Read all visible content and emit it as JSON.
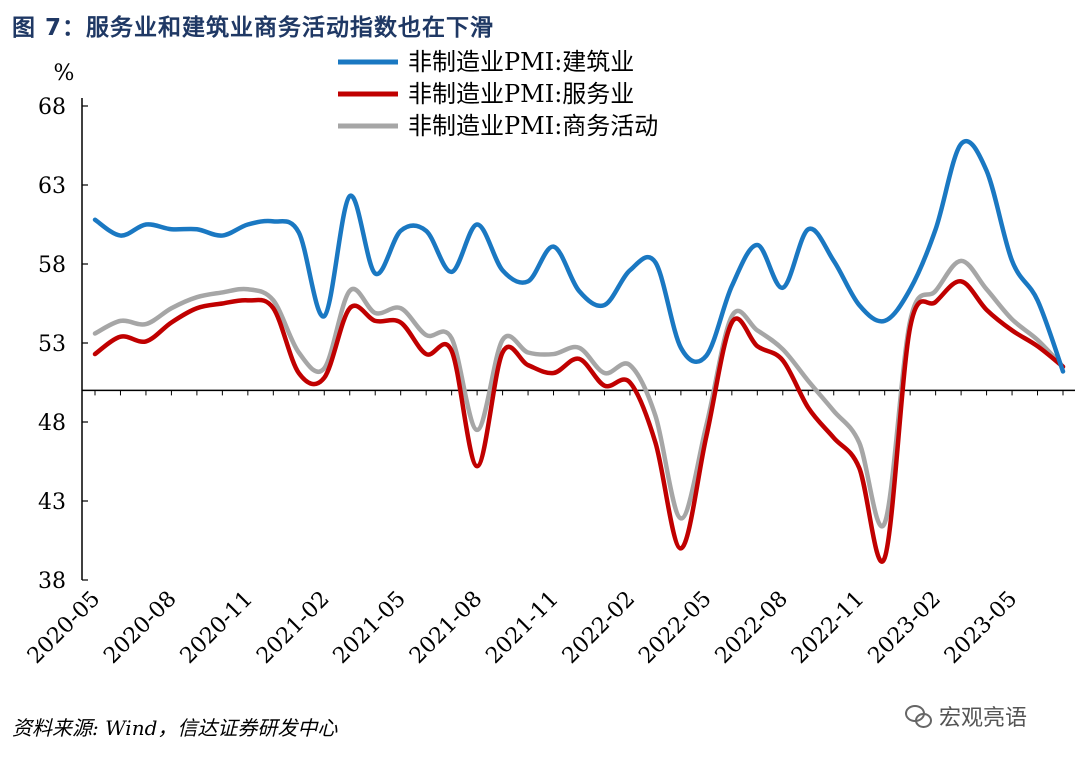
{
  "title": "图 7：服务业和建筑业商务活动指数也在下滑",
  "source": "资料来源: Wind，信达证券研发中心",
  "watermark": "宏观亮语",
  "chart_data": {
    "type": "line",
    "ylabel": "%",
    "ylim": [
      38,
      68
    ],
    "yticks": [
      38,
      43,
      48,
      53,
      58,
      63,
      68
    ],
    "reference_line": 50,
    "x": [
      "2020-05",
      "2020-06",
      "2020-07",
      "2020-08",
      "2020-09",
      "2020-10",
      "2020-11",
      "2020-12",
      "2021-01",
      "2021-02",
      "2021-03",
      "2021-04",
      "2021-05",
      "2021-06",
      "2021-07",
      "2021-08",
      "2021-09",
      "2021-10",
      "2021-11",
      "2021-12",
      "2022-01",
      "2022-02",
      "2022-03",
      "2022-04",
      "2022-05",
      "2022-06",
      "2022-07",
      "2022-08",
      "2022-09",
      "2022-10",
      "2022-11",
      "2022-12",
      "2023-01",
      "2023-02",
      "2023-03",
      "2023-04",
      "2023-05",
      "2023-06",
      "2023-07"
    ],
    "xtick_labels": [
      "2020-05",
      "2020-08",
      "2020-11",
      "2021-02",
      "2021-05",
      "2021-08",
      "2021-11",
      "2022-02",
      "2022-05",
      "2022-08",
      "2022-11",
      "2023-02",
      "2023-05"
    ],
    "series": [
      {
        "name": "非制造业PMI:建筑业",
        "color": "#1a78c2",
        "values": [
          60.8,
          59.8,
          60.5,
          60.2,
          60.2,
          59.8,
          60.5,
          60.7,
          60.0,
          54.7,
          62.3,
          57.4,
          60.1,
          60.1,
          57.5,
          60.5,
          57.6,
          56.9,
          59.1,
          56.3,
          55.4,
          57.6,
          58.1,
          52.7,
          52.2,
          56.6,
          59.2,
          56.5,
          60.2,
          58.2,
          55.4,
          54.4,
          56.4,
          60.2,
          65.6,
          63.9,
          58.2,
          55.7,
          51.2
        ]
      },
      {
        "name": "非制造业PMI:服务业",
        "color": "#c00000",
        "values": [
          52.3,
          53.4,
          53.1,
          54.3,
          55.2,
          55.5,
          55.7,
          55.2,
          51.1,
          50.8,
          55.2,
          54.4,
          54.3,
          52.3,
          52.5,
          45.2,
          52.4,
          51.6,
          51.1,
          52.0,
          50.3,
          50.5,
          46.7,
          40.0,
          47.1,
          54.3,
          52.8,
          51.9,
          48.9,
          47.0,
          45.1,
          39.4,
          54.0,
          55.6,
          56.9,
          55.1,
          53.8,
          52.8,
          51.5
        ]
      },
      {
        "name": "非制造业PMI:商务活动",
        "color": "#a6a6a6",
        "values": [
          53.6,
          54.4,
          54.2,
          55.2,
          55.9,
          56.2,
          56.4,
          55.7,
          52.4,
          51.4,
          56.3,
          54.9,
          55.2,
          53.5,
          53.3,
          47.5,
          53.2,
          52.4,
          52.3,
          52.7,
          51.1,
          51.6,
          48.4,
          41.9,
          47.8,
          54.7,
          53.8,
          52.6,
          50.6,
          48.7,
          46.7,
          41.6,
          54.4,
          56.3,
          58.2,
          56.4,
          54.5,
          53.2,
          51.5
        ]
      }
    ],
    "legend_position": "top"
  }
}
